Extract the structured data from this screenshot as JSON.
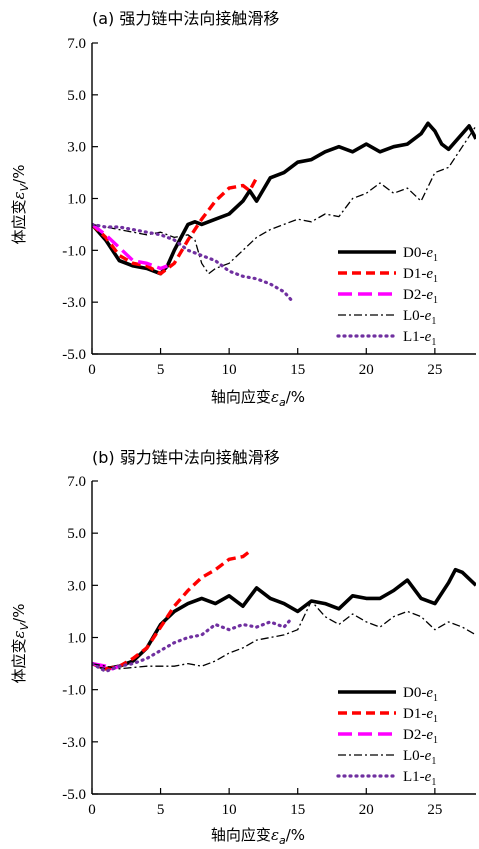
{
  "chart_data": [
    {
      "type": "line",
      "title": "(a) 强力链中法向接触滑移",
      "xlabel_main": "轴向应变",
      "xlabel_symbol": "ε",
      "xlabel_sub": "a",
      "xlabel_unit": "/%",
      "ylabel_main": "体应变",
      "ylabel_symbol": "ε",
      "ylabel_sub": "V",
      "ylabel_unit": "/%",
      "xlim": [
        0,
        28
      ],
      "ylim": [
        -5,
        7
      ],
      "xticks": [
        0,
        5,
        10,
        15,
        20,
        25
      ],
      "xtick_labels": [
        "0",
        "5",
        "10",
        "15",
        "20",
        "25"
      ],
      "yticks": [
        -5,
        -3,
        -1,
        1,
        3,
        5,
        7
      ],
      "ytick_labels": [
        "-5.0",
        "-3.0",
        "-1.0",
        "1.0",
        "3.0",
        "5.0",
        "7.0"
      ],
      "legend_position": "bottom-right",
      "series": [
        {
          "name": "D0",
          "sub": "1",
          "color": "#000000",
          "dash": "solid",
          "x": [
            0,
            1,
            2,
            3,
            4,
            4.5,
            5,
            5.5,
            6,
            6.5,
            7,
            7.5,
            8,
            9,
            10,
            11,
            11.5,
            12,
            13,
            14,
            15,
            16,
            17,
            18,
            19,
            20,
            21,
            22,
            23,
            24,
            24.5,
            25,
            25.5,
            26,
            27,
            27.5,
            28
          ],
          "y": [
            0,
            -0.6,
            -1.4,
            -1.6,
            -1.7,
            -1.8,
            -1.9,
            -1.6,
            -1.0,
            -0.5,
            0,
            0.1,
            0,
            0.2,
            0.4,
            0.9,
            1.3,
            0.9,
            1.8,
            2.0,
            2.4,
            2.5,
            2.8,
            3.0,
            2.8,
            3.1,
            2.8,
            3.0,
            3.1,
            3.5,
            3.9,
            3.6,
            3.1,
            2.9,
            3.5,
            3.8,
            3.3
          ]
        },
        {
          "name": "D1",
          "sub": "1",
          "color": "#ff0000",
          "dash": "long",
          "x": [
            0,
            1,
            2,
            3,
            4,
            5,
            6,
            7,
            8,
            9,
            10,
            11,
            11.5,
            12
          ],
          "y": [
            0,
            -0.5,
            -1.2,
            -1.5,
            -1.6,
            -1.9,
            -1.5,
            -0.6,
            0.2,
            0.9,
            1.4,
            1.5,
            1.3,
            1.8
          ]
        },
        {
          "name": "D2",
          "sub": "1",
          "color": "#ff00ff",
          "dash": "longer",
          "x": [
            0,
            1,
            2,
            3,
            4,
            5,
            5.5
          ],
          "y": [
            0,
            -0.4,
            -0.9,
            -1.4,
            -1.5,
            -1.7,
            -1.6
          ]
        },
        {
          "name": "L0",
          "sub": "1",
          "color": "#000000",
          "dash": "dashdot",
          "x": [
            0,
            2,
            3,
            4,
            5,
            6,
            7,
            7.5,
            8,
            8.5,
            9,
            10,
            11,
            12,
            13,
            14,
            15,
            16,
            17,
            18,
            19,
            20,
            21,
            22,
            23,
            24,
            25,
            26,
            27,
            28
          ],
          "y": [
            0,
            -0.2,
            -0.3,
            -0.4,
            -0.3,
            -0.5,
            -0.4,
            -0.6,
            -1.5,
            -1.9,
            -1.7,
            -1.5,
            -1.0,
            -0.5,
            -0.2,
            0,
            0.2,
            0.1,
            0.4,
            0.3,
            1.0,
            1.2,
            1.6,
            1.2,
            1.4,
            0.9,
            2.0,
            2.2,
            3.0,
            3.8
          ]
        },
        {
          "name": "L1",
          "sub": "1",
          "color": "#7030a0",
          "dash": "dotted",
          "x": [
            0,
            1,
            2,
            3,
            4,
            5,
            6,
            7,
            8,
            9,
            10,
            11,
            12,
            13,
            14,
            14.5
          ],
          "y": [
            0,
            -0.1,
            -0.1,
            -0.2,
            -0.3,
            -0.4,
            -0.6,
            -1.0,
            -1.2,
            -1.4,
            -1.8,
            -2.0,
            -2.1,
            -2.3,
            -2.6,
            -2.9
          ]
        }
      ]
    },
    {
      "type": "line",
      "title": "(b) 弱力链中法向接触滑移",
      "xlabel_main": "轴向应变",
      "xlabel_symbol": "ε",
      "xlabel_sub": "a",
      "xlabel_unit": "/%",
      "ylabel_main": "体应变",
      "ylabel_symbol": "ε",
      "ylabel_sub": "V",
      "ylabel_unit": "/%",
      "xlim": [
        0,
        28
      ],
      "ylim": [
        -5,
        7
      ],
      "xticks": [
        0,
        5,
        10,
        15,
        20,
        25
      ],
      "xtick_labels": [
        "0",
        "5",
        "10",
        "15",
        "20",
        "25"
      ],
      "yticks": [
        -5,
        -3,
        -1,
        1,
        3,
        5,
        7
      ],
      "ytick_labels": [
        "-5.0",
        "-3.0",
        "-1.0",
        "1.0",
        "3.0",
        "5.0",
        "7.0"
      ],
      "legend_position": "bottom-right",
      "series": [
        {
          "name": "D0",
          "sub": "1",
          "color": "#000000",
          "dash": "solid",
          "x": [
            0,
            1,
            2,
            3,
            4,
            5,
            6,
            7,
            8,
            9,
            10,
            11,
            12,
            13,
            14,
            15,
            16,
            17,
            18,
            19,
            20,
            21,
            22,
            23,
            24,
            25,
            26,
            26.5,
            27,
            28
          ],
          "y": [
            0,
            -0.2,
            -0.1,
            0.1,
            0.6,
            1.5,
            2.0,
            2.3,
            2.5,
            2.3,
            2.6,
            2.2,
            2.9,
            2.5,
            2.3,
            2.0,
            2.4,
            2.3,
            2.1,
            2.6,
            2.5,
            2.5,
            2.8,
            3.2,
            2.5,
            2.3,
            3.1,
            3.6,
            3.5,
            3.0
          ]
        },
        {
          "name": "D1",
          "sub": "1",
          "color": "#ff0000",
          "dash": "long",
          "x": [
            0,
            1,
            2,
            3,
            4,
            5,
            6,
            7,
            8,
            9,
            10,
            11,
            11.5
          ],
          "y": [
            0,
            -0.2,
            -0.1,
            0.2,
            0.6,
            1.4,
            2.2,
            2.8,
            3.3,
            3.6,
            4.0,
            4.1,
            4.3
          ]
        },
        {
          "name": "D2",
          "sub": "1",
          "color": "#ff00ff",
          "dash": "longer",
          "x": [
            0,
            1,
            1.5,
            2
          ],
          "y": [
            0,
            -0.1,
            -0.2,
            -0.1
          ]
        },
        {
          "name": "L0",
          "sub": "1",
          "color": "#000000",
          "dash": "dashdot",
          "x": [
            0,
            2,
            4,
            6,
            7,
            8,
            9,
            10,
            11,
            12,
            13,
            14,
            15,
            16,
            17,
            18,
            19,
            20,
            21,
            22,
            23,
            24,
            25,
            26,
            27,
            28
          ],
          "y": [
            0,
            -0.2,
            -0.1,
            -0.1,
            0,
            -0.1,
            0.1,
            0.4,
            0.6,
            0.9,
            1.0,
            1.1,
            1.3,
            2.4,
            1.8,
            1.5,
            1.9,
            1.6,
            1.4,
            1.8,
            2.0,
            1.8,
            1.3,
            1.6,
            1.4,
            1.1
          ]
        },
        {
          "name": "L1",
          "sub": "1",
          "color": "#7030a0",
          "dash": "dotted",
          "x": [
            0,
            1,
            2,
            3,
            4,
            5,
            6,
            7,
            8,
            9,
            10,
            11,
            12,
            13,
            14,
            14.5
          ],
          "y": [
            0,
            -0.3,
            -0.1,
            0,
            0.2,
            0.5,
            0.8,
            1.0,
            1.1,
            1.5,
            1.3,
            1.5,
            1.4,
            1.6,
            1.4,
            1.7
          ]
        }
      ]
    }
  ]
}
